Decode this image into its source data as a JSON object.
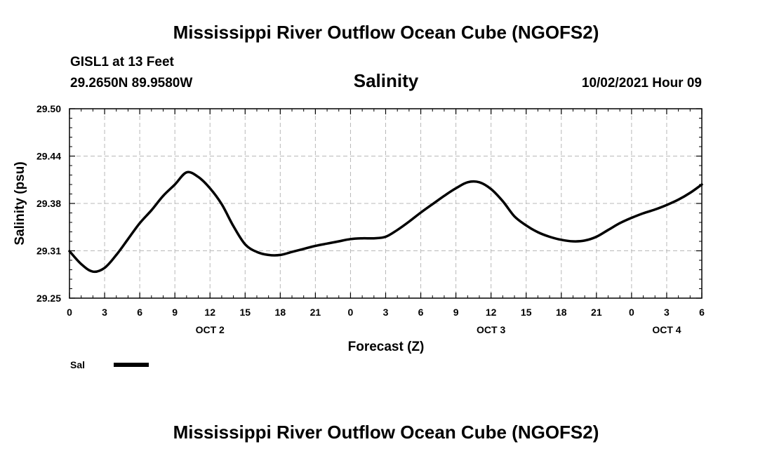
{
  "header": {
    "title": "Mississippi River Outflow Ocean Cube (NGOFS2)",
    "station": "GISL1 at 13 Feet",
    "coords": "29.2650N  89.9580W",
    "variable": "Salinity",
    "timestamp": "10/02/2021 Hour 09"
  },
  "footer": {
    "title": "Mississippi River Outflow Ocean Cube (NGOFS2)"
  },
  "chart_data": {
    "type": "line",
    "title": "Salinity",
    "xlabel": "Forecast (Z)",
    "ylabel": "Salinity (psu)",
    "xlim": [
      0,
      54
    ],
    "ylim": [
      29.25,
      29.5
    ],
    "grid": true,
    "legend_position": "bottom-left",
    "y_ticks": [
      "29.50",
      "29.44",
      "29.38",
      "29.31",
      "29.25"
    ],
    "y_tick_values": [
      29.5,
      29.4375,
      29.375,
      29.3125,
      29.25
    ],
    "x_ticks": [
      {
        "h": 0,
        "label": "0"
      },
      {
        "h": 3,
        "label": "3"
      },
      {
        "h": 6,
        "label": "6"
      },
      {
        "h": 9,
        "label": "9"
      },
      {
        "h": 12,
        "label": "12"
      },
      {
        "h": 15,
        "label": "15"
      },
      {
        "h": 18,
        "label": "18"
      },
      {
        "h": 21,
        "label": "21"
      },
      {
        "h": 24,
        "label": "0"
      },
      {
        "h": 27,
        "label": "3"
      },
      {
        "h": 30,
        "label": "6"
      },
      {
        "h": 33,
        "label": "9"
      },
      {
        "h": 36,
        "label": "12"
      },
      {
        "h": 39,
        "label": "15"
      },
      {
        "h": 42,
        "label": "18"
      },
      {
        "h": 45,
        "label": "21"
      },
      {
        "h": 48,
        "label": "0"
      },
      {
        "h": 51,
        "label": "3"
      },
      {
        "h": 54,
        "label": "6"
      }
    ],
    "day_labels": [
      {
        "h": 12,
        "label": "OCT 2"
      },
      {
        "h": 36,
        "label": "OCT 3"
      },
      {
        "h": 51,
        "label": "OCT 4"
      }
    ],
    "series": [
      {
        "name": "Sal",
        "x": [
          0,
          1,
          2,
          3,
          4,
          5,
          6,
          7,
          8,
          9,
          10,
          11,
          12,
          13,
          14,
          15,
          16,
          17,
          18,
          19,
          20,
          21,
          22,
          23,
          24,
          25,
          26,
          27,
          28,
          29,
          30,
          31,
          32,
          33,
          34,
          35,
          36,
          37,
          38,
          39,
          40,
          41,
          42,
          43,
          44,
          45,
          46,
          47,
          48,
          49,
          50,
          51,
          52,
          53,
          54
        ],
        "values": [
          29.312,
          29.295,
          29.285,
          29.29,
          29.307,
          29.328,
          29.349,
          29.366,
          29.385,
          29.4,
          29.416,
          29.41,
          29.395,
          29.374,
          29.345,
          29.321,
          29.311,
          29.307,
          29.307,
          29.311,
          29.315,
          29.319,
          29.322,
          29.325,
          29.328,
          29.329,
          29.329,
          29.331,
          29.34,
          29.351,
          29.363,
          29.374,
          29.385,
          29.395,
          29.403,
          29.403,
          29.394,
          29.378,
          29.358,
          29.346,
          29.337,
          29.331,
          29.327,
          29.325,
          29.326,
          29.331,
          29.34,
          29.349,
          29.356,
          29.362,
          29.367,
          29.373,
          29.38,
          29.389,
          29.4
        ]
      }
    ]
  }
}
